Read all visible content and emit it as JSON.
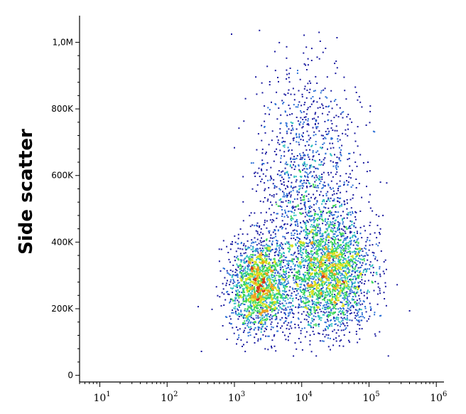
{
  "chart_data": {
    "type": "scatter",
    "subtype": "flow-cytometry-density-dot-plot",
    "title": "",
    "xlabel": "",
    "ylabel": "Side scatter",
    "x_scale": "log",
    "xlim": [
      5,
      1300000
    ],
    "ylim": [
      -20000,
      1080000
    ],
    "x_ticks": [
      {
        "value": 10,
        "base": "10",
        "exp": "1"
      },
      {
        "value": 100,
        "base": "10",
        "exp": "2"
      },
      {
        "value": 1000,
        "base": "10",
        "exp": "3"
      },
      {
        "value": 10000,
        "base": "10",
        "exp": "4"
      },
      {
        "value": 100000,
        "base": "10",
        "exp": "5"
      },
      {
        "value": 1000000,
        "base": "10",
        "exp": "6"
      }
    ],
    "y_ticks": [
      {
        "value": 0,
        "label": "0"
      },
      {
        "value": 200000,
        "label": "200K"
      },
      {
        "value": 400000,
        "label": "400K"
      },
      {
        "value": 600000,
        "label": "600K"
      },
      {
        "value": 800000,
        "label": "800K"
      },
      {
        "value": 1000000,
        "label": "1,0M"
      }
    ],
    "density_colors": [
      "#1a1aa0",
      "#2a6fd6",
      "#2ec0c0",
      "#3fd65a",
      "#d8e020",
      "#f0a020",
      "#d63a1a"
    ],
    "populations": [
      {
        "center_x": 2300,
        "center_y": 270000,
        "count": 1800,
        "spread_log": 0.22,
        "spread_y": 70000
      },
      {
        "center_x": 25000,
        "center_y": 310000,
        "count": 2400,
        "spread_log": 0.32,
        "spread_y": 85000
      },
      {
        "center_x": 12000,
        "center_y": 560000,
        "count": 1300,
        "spread_log": 0.38,
        "spread_y": 190000
      }
    ],
    "grid": false,
    "legend": "none"
  }
}
